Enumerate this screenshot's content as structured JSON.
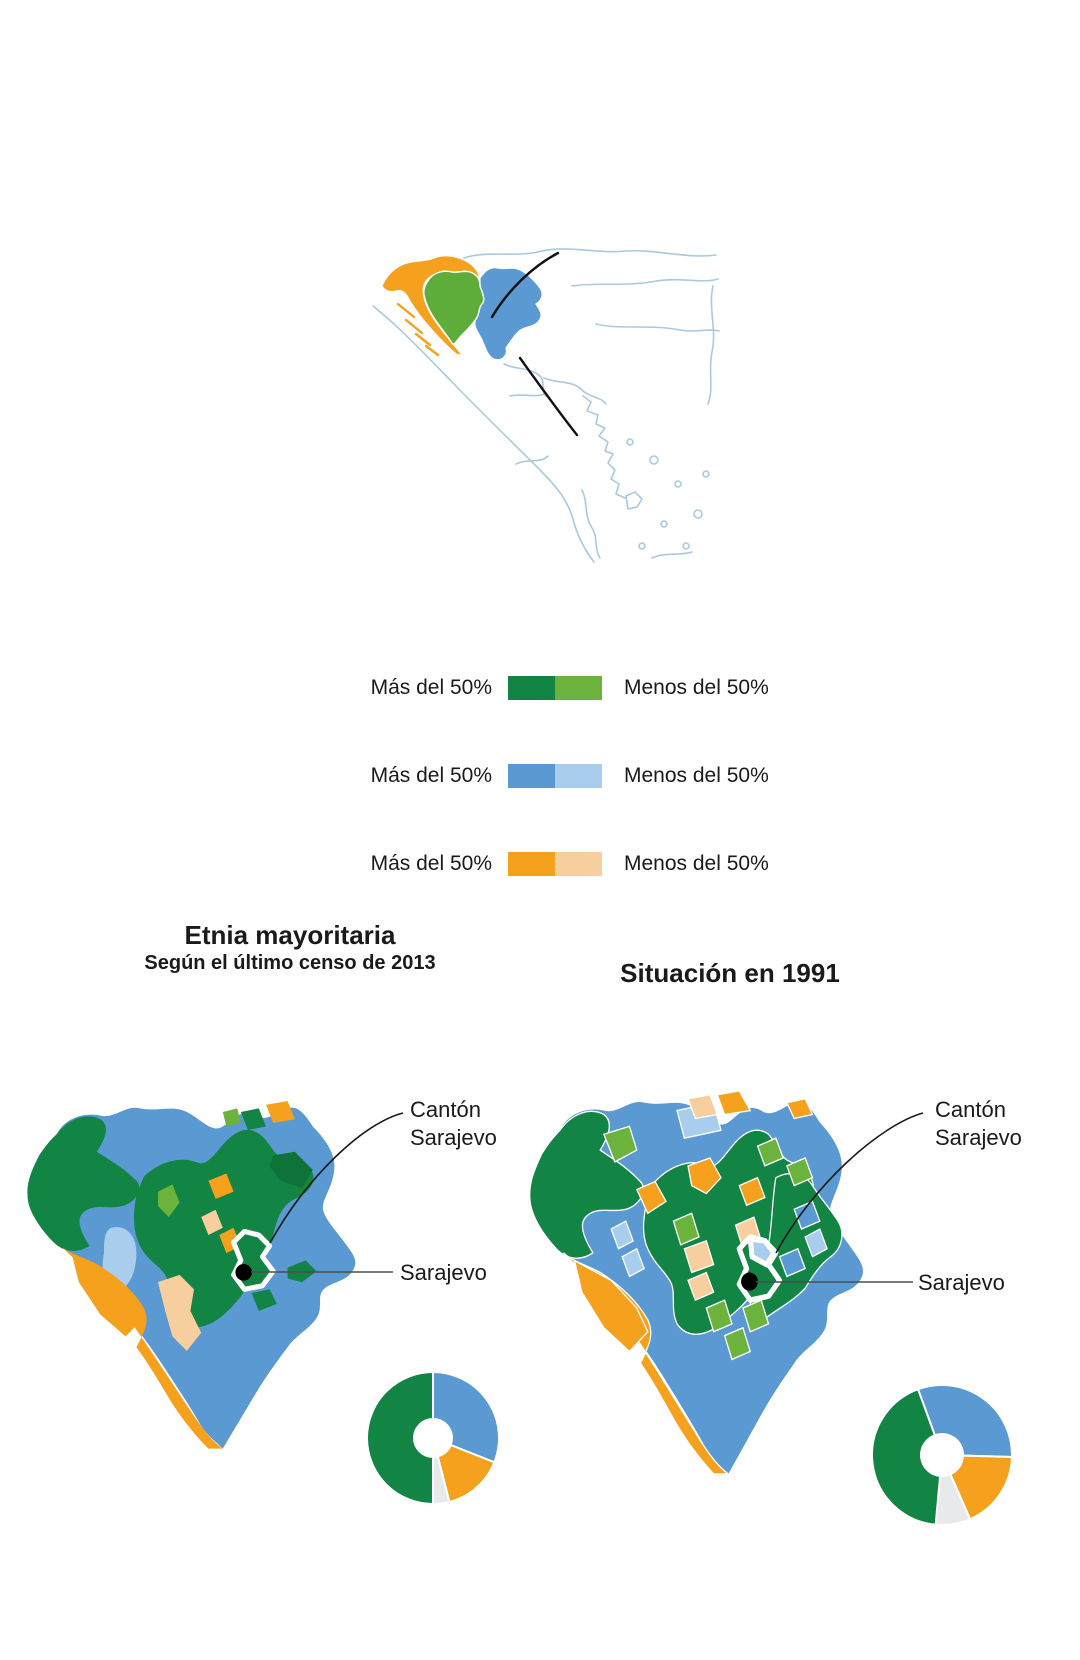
{
  "page": {
    "background": "#ffffff"
  },
  "colors": {
    "bosniak_majority": "#128443",
    "bosniak_minority": "#6cb33e",
    "bosniak_dark_variant": "#0e7239",
    "serb_majority": "#5b99d2",
    "serb_minority": "#a9cded",
    "croat_majority": "#f5a11d",
    "croat_minority": "#f7cf9e",
    "others_gray": "#e7e9ea",
    "locator_bosnia_green": "#5ead3b",
    "locator_border": "#a9c9df",
    "text": "#1a1a1a"
  },
  "legend": {
    "rows": [
      {
        "more_label": "Más del 50%",
        "less_label": "Menos del 50%",
        "more_color": "#128443",
        "less_color": "#6cb33e"
      },
      {
        "more_label": "Más del 50%",
        "less_label": "Menos del 50%",
        "more_color": "#5b99d2",
        "less_color": "#a9cded"
      },
      {
        "more_label": "Más del 50%",
        "less_label": "Menos del 50%",
        "more_color": "#f5a11d",
        "less_color": "#f7cf9e"
      }
    ]
  },
  "maps": {
    "left": {
      "title_line1": "Etnia mayoritaria",
      "title_line2": "Según el último censo de 2013",
      "canton_label_line1": "Cantón",
      "canton_label_line2": "Sarajevo",
      "city_label": "Sarajevo"
    },
    "right": {
      "title": "Situación en 1991",
      "canton_label_line1": "Cantón",
      "canton_label_line2": "Sarajevo",
      "city_label": "Sarajevo"
    }
  },
  "chart_data": [
    {
      "type": "pie",
      "variant": "donut",
      "title": "Etnia mayoritaria — Según el último censo de 2013",
      "categories": [
        "blue",
        "orange",
        "gray",
        "green"
      ],
      "values": [
        31,
        15,
        4,
        50
      ],
      "colors": [
        "#5b99d2",
        "#f5a11d",
        "#e7e9ea",
        "#128443"
      ],
      "start_angle_deg": 0,
      "legend_position": "none"
    },
    {
      "type": "pie",
      "variant": "donut",
      "title": "Situación en 1991",
      "categories": [
        "blue",
        "orange",
        "gray",
        "green"
      ],
      "values": [
        31,
        18,
        8,
        43
      ],
      "colors": [
        "#5b99d2",
        "#f5a11d",
        "#e7e9ea",
        "#128443"
      ],
      "start_angle_deg": -20,
      "legend_position": "none"
    }
  ]
}
